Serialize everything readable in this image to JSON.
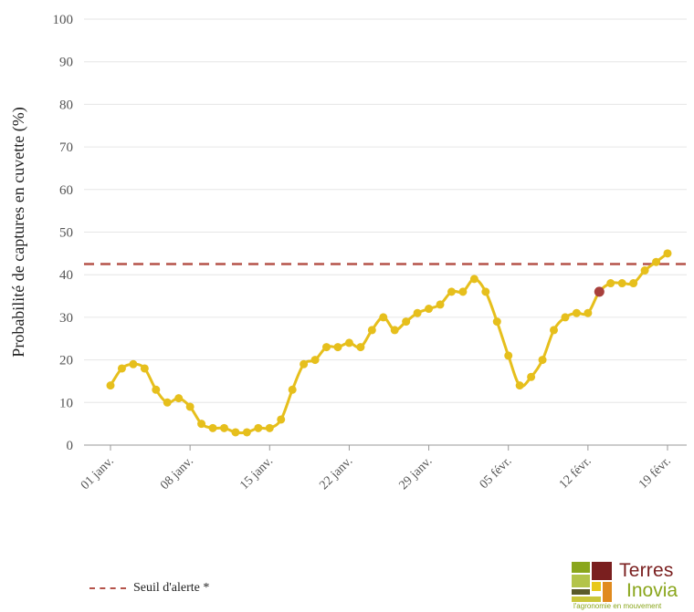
{
  "chart_data": {
    "type": "line",
    "ylabel": "Probabilité de captures en cuvette (%)",
    "xlabel": "",
    "ylim": [
      0,
      100
    ],
    "y_ticks": [
      0,
      10,
      20,
      30,
      40,
      50,
      60,
      70,
      80,
      90,
      100
    ],
    "x_tick_labels": [
      "01 janv.",
      "08 janv.",
      "15 janv.",
      "22 janv.",
      "29 janv.",
      "05 févr.",
      "12 févr.",
      "19 févr."
    ],
    "grid": true,
    "threshold": {
      "label": "Seuil d'alerte *",
      "value": 42.5,
      "color": "#b5534a"
    },
    "series": [
      {
        "color": "#e6bf1c",
        "values": [
          14,
          18,
          19,
          18,
          13,
          10,
          11,
          9,
          5,
          4,
          4,
          3,
          3,
          4,
          4,
          6,
          13,
          19,
          20,
          23,
          23,
          24,
          23,
          27,
          30,
          27,
          29,
          31,
          32,
          33,
          36,
          36,
          39,
          36,
          29,
          21,
          14,
          16,
          20,
          27,
          30,
          31,
          31,
          36,
          38,
          38,
          38,
          41,
          43,
          45
        ]
      }
    ],
    "highlight": {
      "index": 43,
      "value": 36,
      "color": "#a8403c"
    }
  },
  "legend": {
    "threshold_label": "Seuil d'alerte *"
  },
  "logo": {
    "line1": "Terres",
    "line2": "Inovia",
    "tagline": "l'agronomie en mouvement"
  }
}
